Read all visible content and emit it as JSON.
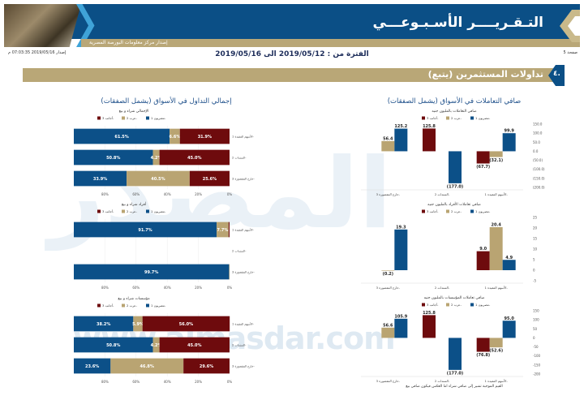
{
  "header": {
    "title": "التـقـريــــر الأسـبـوعـــي",
    "issuer": "إصدار مركز معلومات البورصة المصرية",
    "logo_watermark": "المصدر www.almasdar.com"
  },
  "meta": {
    "issued": "إصدار 2019/05/16 07:03:35 م",
    "period": "الفترة من : 2019/05/12 الى 2019/05/16",
    "page": "صفحة 5"
  },
  "section": {
    "number": "٤.",
    "title": "تداولات المستثمرين (يتبع)"
  },
  "left_title": "إجمالي التداول في الأسواق (يشمل الصفقات)",
  "right_title": "صافي التعاملات في الأسواق (يشمل الصفقات)",
  "footnote": "القيم الموجبة تشير إلى صافي شراء اما العكس فيكون صافي بيع",
  "colors": {
    "egyptians": "#0c5088",
    "arabs": "#b9a472",
    "foreigners": "#6e0b0d"
  },
  "chart_data": [
    {
      "id": "s1",
      "type": "bar",
      "stacked": true,
      "title": "الإجمالي شراء و بيع",
      "legend": [
        "مصريون 1-",
        "عرب 2-",
        "أجانب 3-"
      ],
      "categories": [
        "الأسهم المقيدة 1-",
        "السندات 2-",
        "خارج المقصورة 3-"
      ],
      "series": [
        {
          "name": "مصريون 1-",
          "values": [
            61.5,
            50.8,
            33.9
          ]
        },
        {
          "name": "عرب 2-",
          "values": [
            6.6,
            4.2,
            40.5
          ]
        },
        {
          "name": "أجانب 3-",
          "values": [
            31.9,
            45.0,
            25.6
          ]
        }
      ],
      "xticks": [
        "80%",
        "60%",
        "40%",
        "20%",
        "0%"
      ]
    },
    {
      "id": "s2",
      "type": "bar",
      "stacked": true,
      "title": "أفراد شراء و بيع",
      "legend": [
        "مصريون 1-",
        "عرب 2-",
        "أجانب 3-"
      ],
      "categories": [
        "الأسهم المقيدة 1-",
        "السندات 2-",
        "خارج المقصورة 3-"
      ],
      "series": [
        {
          "name": "مصريون 1-",
          "values": [
            91.7,
            0,
            99.7
          ]
        },
        {
          "name": "عرب 2-",
          "values": [
            7.7,
            0,
            0.3
          ]
        },
        {
          "name": "أجانب 3-",
          "values": [
            0.6,
            0,
            0
          ]
        }
      ],
      "xticks": [
        "80%",
        "60%",
        "40%",
        "20%",
        "0%"
      ]
    },
    {
      "id": "s3",
      "type": "bar",
      "stacked": true,
      "title": "مؤسسات شراء و بيع",
      "legend": [
        "مصريون 1-",
        "عرب 2-",
        "أجانب 3-"
      ],
      "categories": [
        "الأسهم المقيدة 1-",
        "السندات 2-",
        "خارج المقصورة 3-"
      ],
      "series": [
        {
          "name": "مصريون 1-",
          "values": [
            38.2,
            50.8,
            23.6
          ]
        },
        {
          "name": "عرب 2-",
          "values": [
            5.9,
            4.2,
            46.8
          ]
        },
        {
          "name": "أجانب 3-",
          "values": [
            56.0,
            45.0,
            29.6
          ]
        }
      ],
      "xticks": [
        "80%",
        "60%",
        "40%",
        "20%",
        "0%"
      ]
    },
    {
      "id": "c1",
      "type": "bar",
      "title": "صافي التعاملات بالمليون جنيه",
      "legend": [
        "مصريون 1-",
        "عرب 2-",
        "أجانب 3-"
      ],
      "categories": [
        "خارج المقصورة 3-",
        "السندات 2-",
        "الأسهم المقيدة 1-"
      ],
      "series": [
        {
          "name": "أجانب 3-",
          "values": [
            null,
            125.8,
            -67.7
          ]
        },
        {
          "name": "عرب 2-",
          "values": [
            56.4,
            null,
            -32.1
          ]
        },
        {
          "name": "مصريون 1-",
          "values": [
            125.2,
            -177.0,
            99.9
          ]
        }
      ],
      "ylim": [
        -200,
        150
      ],
      "ystep": 50,
      "yfmt": "dec"
    },
    {
      "id": "c2",
      "type": "bar",
      "title": "صافي تعاملات الأفراد بالمليون جنيه",
      "legend": [
        "مصريون 1-",
        "عرب 2-",
        "أجانب 3-"
      ],
      "categories": [
        "خارج المقصورة 3-",
        "السندات 2-",
        "الأسهم المقيدة 1-"
      ],
      "series": [
        {
          "name": "أجانب 3-",
          "values": [
            null,
            null,
            9.0
          ]
        },
        {
          "name": "عرب 2-",
          "values": [
            -0.2,
            null,
            20.4
          ]
        },
        {
          "name": "مصريون 1-",
          "values": [
            19.3,
            null,
            4.9
          ]
        }
      ],
      "ylim": [
        -5,
        25
      ],
      "ystep": 5,
      "yfmt": "int"
    },
    {
      "id": "c3",
      "type": "bar",
      "title": "صافي تعاملات المؤسسات بالمليون جنيه",
      "legend": [
        "مصريون 1-",
        "عرب 2-",
        "أجانب 3-"
      ],
      "categories": [
        "خارج المقصورة 3-",
        "السندات 2-",
        "الأسهم المقيدة 1-"
      ],
      "series": [
        {
          "name": "أجانب 3-",
          "values": [
            null,
            125.8,
            -76.8
          ]
        },
        {
          "name": "عرب 2-",
          "values": [
            56.6,
            null,
            -52.6
          ]
        },
        {
          "name": "مصريون 1-",
          "values": [
            105.9,
            -177.0,
            95.0
          ]
        }
      ],
      "ylim": [
        -200,
        150
      ],
      "ystep": 50,
      "yfmt": "int"
    }
  ]
}
